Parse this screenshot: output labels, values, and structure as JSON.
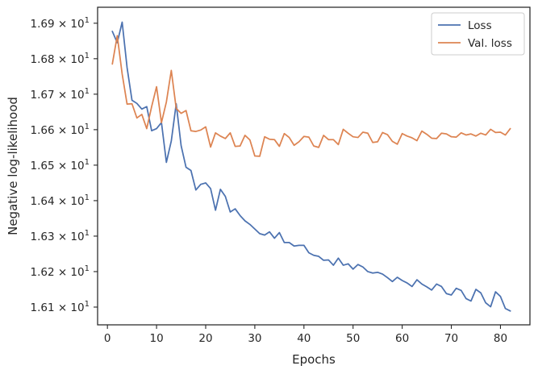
{
  "chart_data": {
    "type": "line",
    "xlabel": "Epochs",
    "ylabel": "Negative log-likelihood",
    "xlim": [
      -2,
      86
    ],
    "ylim": [
      16.05,
      16.945
    ],
    "xticks": [
      0,
      10,
      20,
      30,
      40,
      50,
      60,
      70,
      80
    ],
    "yticks": [
      {
        "value": 16.1,
        "label": "1.61 × 10^1"
      },
      {
        "value": 16.2,
        "label": "1.62 × 10^1"
      },
      {
        "value": 16.3,
        "label": "1.63 × 10^1"
      },
      {
        "value": 16.4,
        "label": "1.64 × 10^1"
      },
      {
        "value": 16.5,
        "label": "1.65 × 10^1"
      },
      {
        "value": 16.6,
        "label": "1.66 × 10^1"
      },
      {
        "value": 16.7,
        "label": "1.67 × 10^1"
      },
      {
        "value": 16.8,
        "label": "1.68 × 10^1"
      },
      {
        "value": 16.9,
        "label": "1.69 × 10^1"
      }
    ],
    "grid": false,
    "legend": "top-right",
    "series": [
      {
        "name": "Loss",
        "color": "#4c72b0",
        "x": [
          1,
          2,
          3,
          4,
          5,
          6,
          7,
          8,
          9,
          10,
          11,
          12,
          13,
          14,
          15,
          16,
          17,
          18,
          19,
          20,
          21,
          22,
          23,
          24,
          25,
          26,
          27,
          28,
          29,
          30,
          31,
          32,
          33,
          34,
          35,
          36,
          37,
          38,
          39,
          40,
          41,
          42,
          43,
          44,
          45,
          46,
          47,
          48,
          49,
          50,
          51,
          52,
          53,
          54,
          55,
          56,
          57,
          58,
          59,
          60,
          61,
          62,
          63,
          64,
          65,
          66,
          67,
          68,
          69,
          70,
          71,
          72,
          73,
          74,
          75,
          76,
          77,
          78,
          79,
          80,
          81,
          82
        ],
        "values": [
          16.877,
          16.845,
          16.903,
          16.775,
          16.683,
          16.674,
          16.658,
          16.665,
          16.597,
          16.603,
          16.62,
          16.508,
          16.568,
          16.673,
          16.555,
          16.494,
          16.485,
          16.43,
          16.446,
          16.45,
          16.434,
          16.373,
          16.432,
          16.412,
          16.368,
          16.377,
          16.358,
          16.343,
          16.333,
          16.32,
          16.307,
          16.303,
          16.312,
          16.294,
          16.31,
          16.282,
          16.282,
          16.272,
          16.274,
          16.274,
          16.253,
          16.246,
          16.243,
          16.232,
          16.233,
          16.218,
          16.238,
          16.218,
          16.222,
          16.207,
          16.22,
          16.213,
          16.2,
          16.196,
          16.198,
          16.193,
          16.183,
          16.172,
          16.184,
          16.175,
          16.168,
          16.158,
          16.177,
          16.165,
          16.157,
          16.148,
          16.165,
          16.158,
          16.138,
          16.134,
          16.153,
          16.147,
          16.124,
          16.117,
          16.15,
          16.14,
          16.112,
          16.101,
          16.143,
          16.13,
          16.096,
          16.089
        ]
      },
      {
        "name": "Val. loss",
        "color": "#dd8452",
        "x": [
          1,
          2,
          3,
          4,
          5,
          6,
          7,
          8,
          9,
          10,
          11,
          12,
          13,
          14,
          15,
          16,
          17,
          18,
          19,
          20,
          21,
          22,
          23,
          24,
          25,
          26,
          27,
          28,
          29,
          30,
          31,
          32,
          33,
          34,
          35,
          36,
          37,
          38,
          39,
          40,
          41,
          42,
          43,
          44,
          45,
          46,
          47,
          48,
          49,
          50,
          51,
          52,
          53,
          54,
          55,
          56,
          57,
          58,
          59,
          60,
          61,
          62,
          63,
          64,
          65,
          66,
          67,
          68,
          69,
          70,
          71,
          72,
          73,
          74,
          75,
          76,
          77,
          78,
          79,
          80,
          81,
          82
        ],
        "values": [
          16.785,
          16.865,
          16.757,
          16.672,
          16.673,
          16.633,
          16.643,
          16.603,
          16.665,
          16.721,
          16.62,
          16.678,
          16.767,
          16.66,
          16.646,
          16.654,
          16.597,
          16.595,
          16.599,
          16.608,
          16.551,
          16.591,
          16.582,
          16.575,
          16.591,
          16.553,
          16.554,
          16.584,
          16.571,
          16.526,
          16.525,
          16.58,
          16.573,
          16.572,
          16.553,
          16.589,
          16.578,
          16.556,
          16.566,
          16.581,
          16.579,
          16.554,
          16.55,
          16.584,
          16.572,
          16.572,
          16.558,
          16.601,
          16.59,
          16.58,
          16.578,
          16.593,
          16.59,
          16.564,
          16.566,
          16.592,
          16.586,
          16.567,
          16.559,
          16.589,
          16.582,
          16.577,
          16.569,
          16.596,
          16.587,
          16.576,
          16.575,
          16.59,
          16.588,
          16.58,
          16.579,
          16.591,
          16.585,
          16.588,
          16.582,
          16.59,
          16.585,
          16.601,
          16.592,
          16.593,
          16.585,
          16.603
        ]
      }
    ]
  }
}
